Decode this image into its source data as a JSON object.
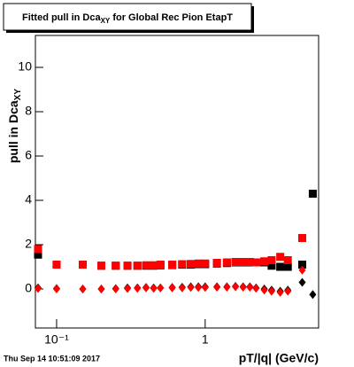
{
  "chart_data": {
    "type": "scatter",
    "title": [
      "Fitted pull in Dca",
      "XY",
      " for Global Rec Pion EtapT"
    ],
    "y_label": [
      "pull in Dca",
      "XY"
    ],
    "x_label": "pT/|q| (GeV/c)",
    "timestamp": "Thu Sep 14 10:51:09 2017",
    "x": [
      0.075,
      0.1,
      0.15,
      0.2,
      0.25,
      0.3,
      0.35,
      0.4,
      0.45,
      0.5,
      0.6,
      0.7,
      0.8,
      0.9,
      1.0,
      1.2,
      1.4,
      1.6,
      1.8,
      2.0,
      2.2,
      2.5,
      2.8,
      3.2,
      3.6,
      4.5,
      5.3
    ],
    "series": [
      {
        "color": "#000000",
        "marker": "square",
        "values": [
          1.55,
          1.1,
          1.1,
          1.05,
          1.05,
          1.05,
          1.05,
          1.05,
          1.05,
          1.07,
          1.08,
          1.1,
          1.1,
          1.12,
          1.12,
          1.15,
          1.17,
          1.2,
          1.2,
          1.2,
          1.2,
          1.2,
          1.05,
          1.0,
          1.0,
          1.1,
          4.3
        ]
      },
      {
        "color": "#ff0000",
        "marker": "square",
        "values": [
          1.8,
          1.1,
          1.1,
          1.05,
          1.05,
          1.05,
          1.05,
          1.07,
          1.07,
          1.1,
          1.1,
          1.12,
          1.13,
          1.15,
          1.15,
          1.18,
          1.2,
          1.22,
          1.22,
          1.22,
          1.2,
          1.25,
          1.3,
          1.45,
          1.3,
          2.3,
          null
        ]
      },
      {
        "color": "#000000",
        "marker": "diamond",
        "values": [
          0.05,
          0.02,
          0.0,
          0.0,
          0.02,
          0.05,
          0.05,
          0.07,
          0.05,
          0.05,
          0.07,
          0.08,
          0.1,
          0.1,
          0.1,
          0.1,
          0.1,
          0.12,
          0.1,
          0.1,
          0.05,
          0.0,
          -0.05,
          -0.1,
          -0.05,
          0.3,
          -0.25
        ]
      },
      {
        "color": "#ff0000",
        "marker": "diamond",
        "values": [
          0.02,
          0.0,
          0.0,
          0.0,
          0.0,
          0.02,
          0.03,
          0.05,
          0.03,
          0.05,
          0.05,
          0.05,
          0.07,
          0.07,
          0.07,
          0.08,
          0.08,
          0.1,
          0.08,
          0.08,
          0.03,
          -0.05,
          -0.1,
          -0.15,
          -0.1,
          0.85,
          null
        ]
      }
    ],
    "xscale": "log",
    "xlim": [
      0.072,
      5.8
    ],
    "xticks": [
      {
        "value": 0.1,
        "label": "10⁻¹"
      },
      1
    ],
    "ylim": [
      -1.76,
      11.44
    ],
    "yticks": [
      0,
      2,
      4,
      6,
      8,
      10
    ]
  }
}
